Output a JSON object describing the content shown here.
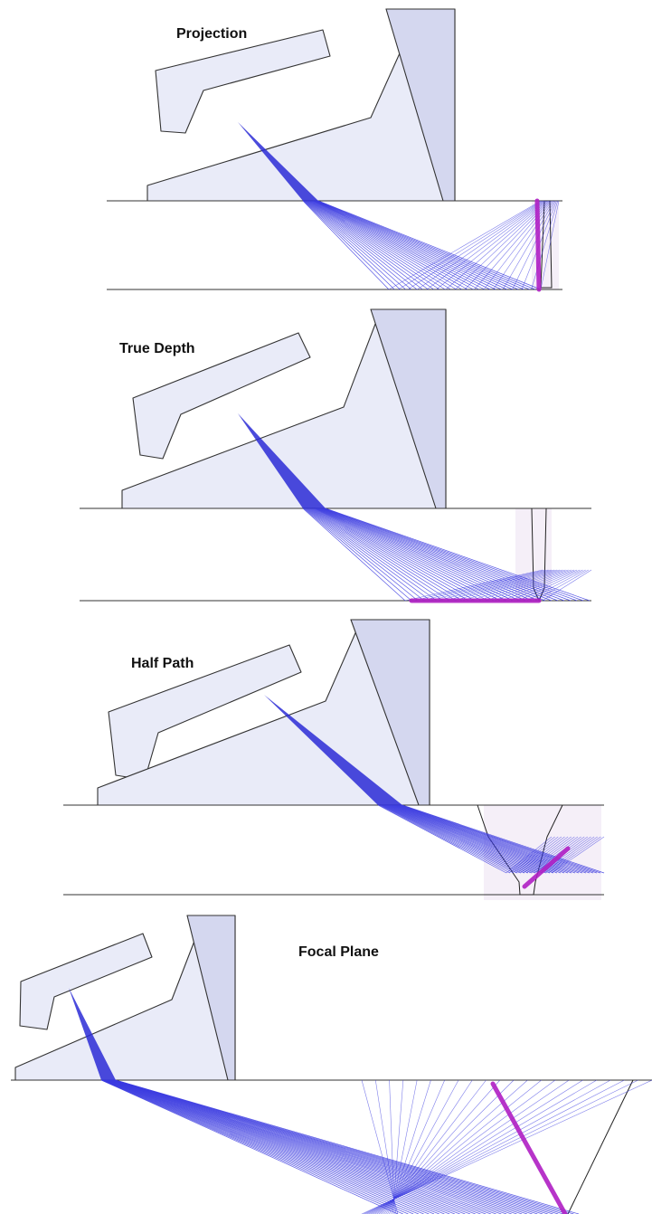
{
  "panels": [
    {
      "id": "projection",
      "title": "Projection"
    },
    {
      "id": "true-depth",
      "title": "True Depth"
    },
    {
      "id": "half-path",
      "title": "Half Path"
    },
    {
      "id": "focal-plane",
      "title": "Focal Plane"
    }
  ],
  "colors": {
    "wedge": "#e9ebf8",
    "wedge_dark": "#d4d7ef",
    "beam": "#2b2bd6",
    "ray": "#3a3ae0",
    "focus": "#b01fc4",
    "outline": "#333333"
  }
}
